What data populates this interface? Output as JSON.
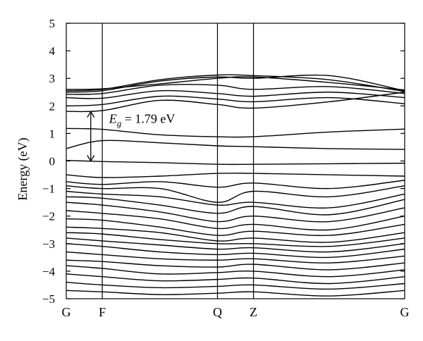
{
  "chart_data": {
    "type": "line",
    "title": "",
    "xlabel": "",
    "ylabel": "Energy (eV)",
    "x_ticks": [
      "G",
      "F",
      "Q",
      "Z",
      "G"
    ],
    "x_positions": [
      0,
      1,
      4.2,
      5.2,
      9.4
    ],
    "xlim": [
      0,
      9.4
    ],
    "ylim": [
      -5,
      5
    ],
    "y_ticks": [
      5,
      4,
      3,
      2,
      1,
      0,
      -1,
      -2,
      -3,
      -4,
      -5
    ],
    "grid": false,
    "annotation": {
      "text_main": "E",
      "text_sub": "g",
      "text_rest": " = 1.79 eV",
      "arrow_from": 0.0,
      "arrow_to": 1.79,
      "arrow_x": 0.68
    },
    "series": [
      {
        "x": [
          0,
          1,
          2.6,
          4.2,
          5.2,
          7.3,
          9.4
        ],
        "y": [
          0.02,
          -0.02,
          -0.06,
          -0.12,
          -0.12,
          -0.1,
          -0.08
        ]
      },
      {
        "x": [
          0,
          1,
          2.6,
          4.2,
          5.2,
          7.3,
          9.4
        ],
        "y": [
          0.45,
          0.74,
          0.66,
          0.55,
          0.52,
          0.45,
          0.42
        ]
      },
      {
        "x": [
          0,
          1,
          2.6,
          4.2,
          5.2,
          7.3,
          9.4
        ],
        "y": [
          1.18,
          1.15,
          0.95,
          0.88,
          0.88,
          1.05,
          1.16
        ]
      },
      {
        "x": [
          0,
          1,
          2.6,
          4.2,
          5.2,
          7.3,
          9.4
        ],
        "y": [
          1.8,
          1.83,
          2.2,
          2.05,
          1.92,
          2.15,
          2.5
        ]
      },
      {
        "x": [
          0,
          1,
          2.6,
          4.2,
          5.2,
          7.3,
          9.4
        ],
        "y": [
          2.0,
          2.05,
          2.35,
          2.25,
          2.15,
          2.3,
          2.08
        ]
      },
      {
        "x": [
          0,
          1,
          2.6,
          4.2,
          5.2,
          7.3,
          9.4
        ],
        "y": [
          2.3,
          2.28,
          2.55,
          2.45,
          2.35,
          2.5,
          2.3
        ]
      },
      {
        "x": [
          0,
          1,
          2.6,
          4.2,
          5.2,
          7.3,
          9.4
        ],
        "y": [
          2.42,
          2.45,
          2.75,
          2.75,
          2.6,
          2.7,
          2.45
        ]
      },
      {
        "x": [
          0,
          1,
          2.6,
          4.2,
          5.2,
          7.3,
          9.4
        ],
        "y": [
          2.5,
          2.55,
          2.9,
          3.05,
          3.0,
          3.1,
          2.55
        ]
      },
      {
        "x": [
          0,
          1,
          2.6,
          4.2,
          5.2,
          7.3,
          9.4
        ],
        "y": [
          2.55,
          2.6,
          2.95,
          3.12,
          3.1,
          2.95,
          2.52
        ]
      },
      {
        "x": [
          0,
          1,
          2.6,
          4.2,
          5.2,
          7.3,
          9.4
        ],
        "y": [
          2.6,
          2.62,
          2.8,
          3.0,
          3.05,
          2.85,
          2.58
        ]
      },
      {
        "x": [
          0,
          1,
          2.6,
          4.2,
          5.2,
          7.3,
          9.4
        ],
        "y": [
          -0.5,
          -0.6,
          -0.55,
          -0.45,
          -0.45,
          -0.5,
          -0.55
        ]
      },
      {
        "x": [
          0,
          1,
          2.6,
          4.2,
          5.2,
          7.3,
          9.4
        ],
        "y": [
          -0.75,
          -0.85,
          -0.75,
          -0.95,
          -0.8,
          -1.0,
          -0.7
        ]
      },
      {
        "x": [
          0,
          1,
          2.6,
          4.2,
          5.2,
          7.3,
          9.4
        ],
        "y": [
          -0.9,
          -1.0,
          -1.0,
          -1.5,
          -1.1,
          -1.3,
          -0.9
        ]
      },
      {
        "x": [
          0,
          1,
          2.6,
          4.2,
          5.2,
          7.3,
          9.4
        ],
        "y": [
          -1.1,
          -1.2,
          -1.3,
          -1.6,
          -1.5,
          -1.7,
          -1.2
        ]
      },
      {
        "x": [
          0,
          1,
          2.6,
          4.2,
          5.2,
          7.3,
          9.4
        ],
        "y": [
          -1.3,
          -1.35,
          -1.6,
          -1.9,
          -1.65,
          -1.95,
          -1.4
        ]
      },
      {
        "x": [
          0,
          1,
          2.6,
          4.2,
          5.2,
          7.3,
          9.4
        ],
        "y": [
          -1.5,
          -1.6,
          -1.85,
          -2.2,
          -2.0,
          -2.2,
          -1.7
        ]
      },
      {
        "x": [
          0,
          1,
          2.6,
          4.2,
          5.2,
          7.3,
          9.4
        ],
        "y": [
          -1.8,
          -1.9,
          -2.1,
          -2.45,
          -2.3,
          -2.5,
          -2.0
        ]
      },
      {
        "x": [
          0,
          1,
          2.6,
          4.2,
          5.2,
          7.3,
          9.4
        ],
        "y": [
          -2.1,
          -2.15,
          -2.4,
          -2.7,
          -2.55,
          -2.7,
          -2.3
        ]
      },
      {
        "x": [
          0,
          1,
          2.6,
          4.2,
          5.2,
          7.3,
          9.4
        ],
        "y": [
          -2.4,
          -2.45,
          -2.6,
          -2.9,
          -2.8,
          -2.95,
          -2.6
        ]
      },
      {
        "x": [
          0,
          1,
          2.6,
          4.2,
          5.2,
          7.3,
          9.4
        ],
        "y": [
          -2.6,
          -2.65,
          -2.85,
          -3.0,
          -3.0,
          -3.1,
          -2.8
        ]
      },
      {
        "x": [
          0,
          1,
          2.6,
          4.2,
          5.2,
          7.3,
          9.4
        ],
        "y": [
          -2.8,
          -2.9,
          -3.05,
          -3.2,
          -3.15,
          -3.3,
          -3.0
        ]
      },
      {
        "x": [
          0,
          1,
          2.6,
          4.2,
          5.2,
          7.3,
          9.4
        ],
        "y": [
          -3.0,
          -3.1,
          -3.3,
          -3.4,
          -3.35,
          -3.5,
          -3.2
        ]
      },
      {
        "x": [
          0,
          1,
          2.6,
          4.2,
          5.2,
          7.3,
          9.4
        ],
        "y": [
          -3.3,
          -3.4,
          -3.55,
          -3.6,
          -3.55,
          -3.7,
          -3.45
        ]
      },
      {
        "x": [
          0,
          1,
          2.6,
          4.2,
          5.2,
          7.3,
          9.4
        ],
        "y": [
          -3.6,
          -3.65,
          -3.8,
          -3.85,
          -3.75,
          -3.95,
          -3.7
        ]
      },
      {
        "x": [
          0,
          1,
          2.6,
          4.2,
          5.2,
          7.3,
          9.4
        ],
        "y": [
          -3.8,
          -3.9,
          -4.1,
          -4.05,
          -4.0,
          -4.2,
          -3.95
        ]
      },
      {
        "x": [
          0,
          1,
          2.6,
          4.2,
          5.2,
          7.3,
          9.4
        ],
        "y": [
          -4.1,
          -4.2,
          -4.35,
          -4.3,
          -4.25,
          -4.45,
          -4.2
        ]
      },
      {
        "x": [
          0,
          1,
          2.6,
          4.2,
          5.2,
          7.3,
          9.4
        ],
        "y": [
          -4.4,
          -4.5,
          -4.6,
          -4.55,
          -4.5,
          -4.65,
          -4.45
        ]
      },
      {
        "x": [
          0,
          1,
          2.6,
          4.2,
          5.2,
          7.3,
          9.4
        ],
        "y": [
          -4.7,
          -4.75,
          -4.85,
          -4.8,
          -4.75,
          -4.9,
          -4.7
        ]
      }
    ]
  }
}
